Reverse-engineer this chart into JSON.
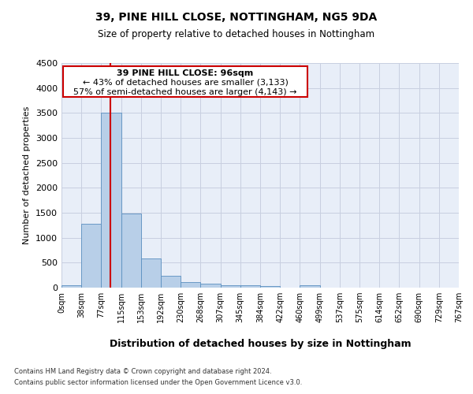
{
  "title": "39, PINE HILL CLOSE, NOTTINGHAM, NG5 9DA",
  "subtitle": "Size of property relative to detached houses in Nottingham",
  "xlabel": "Distribution of detached houses by size in Nottingham",
  "ylabel": "Number of detached properties",
  "bin_labels": [
    "0sqm",
    "38sqm",
    "77sqm",
    "115sqm",
    "153sqm",
    "192sqm",
    "230sqm",
    "268sqm",
    "307sqm",
    "345sqm",
    "384sqm",
    "422sqm",
    "460sqm",
    "499sqm",
    "537sqm",
    "575sqm",
    "614sqm",
    "652sqm",
    "690sqm",
    "729sqm",
    "767sqm"
  ],
  "bar_values": [
    50,
    1280,
    3500,
    1480,
    580,
    240,
    115,
    80,
    55,
    40,
    30,
    0,
    50,
    0,
    0,
    0,
    0,
    0,
    0,
    0
  ],
  "bar_color": "#b8cfe8",
  "bar_edge_color": "#5a8fc0",
  "grid_color": "#c8cfe0",
  "background_color": "#e8eef8",
  "ylim_max": 4500,
  "yticks": [
    0,
    500,
    1000,
    1500,
    2000,
    2500,
    3000,
    3500,
    4000,
    4500
  ],
  "red_line_x": 2.48,
  "annotation_text_line1": "39 PINE HILL CLOSE: 96sqm",
  "annotation_text_line2": "← 43% of detached houses are smaller (3,133)",
  "annotation_text_line3": "57% of semi-detached houses are larger (4,143) →",
  "annotation_box_color": "#cc0000",
  "footer_line1": "Contains HM Land Registry data © Crown copyright and database right 2024.",
  "footer_line2": "Contains public sector information licensed under the Open Government Licence v3.0."
}
